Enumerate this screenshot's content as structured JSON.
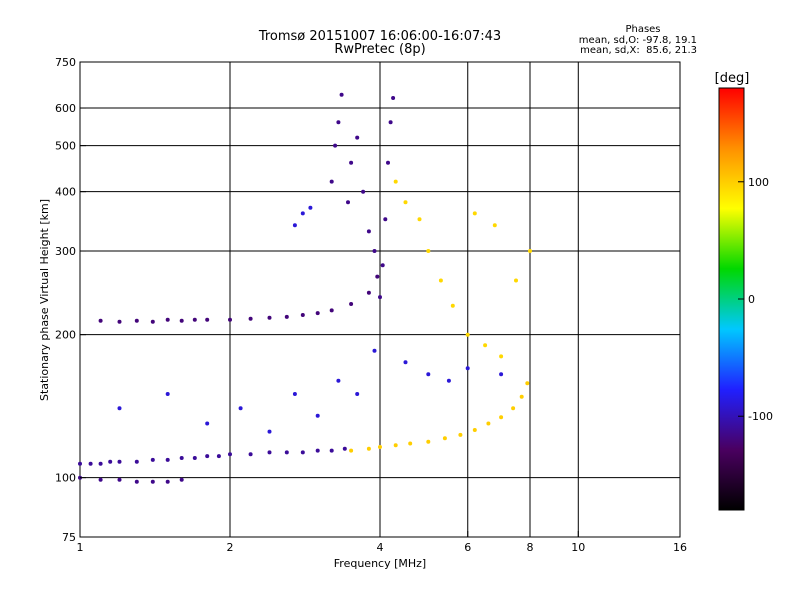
{
  "chart_data": {
    "type": "scatter",
    "title": "Tromsø 20151007 16:06:00-16:07:43",
    "subtitle": "RwPretec (8p)",
    "xlabel": "Frequency [MHz]",
    "ylabel": "Stationary phase Virtual Height [km]",
    "x_scale": "log",
    "y_scale": "log",
    "xlim": [
      1,
      16
    ],
    "ylim": [
      75,
      750
    ],
    "xticks": [
      1,
      2,
      4,
      6,
      8,
      10,
      16
    ],
    "yticks": [
      75,
      100,
      200,
      300,
      400,
      500,
      600,
      750
    ],
    "x_gridlines": [
      2,
      4,
      6,
      8,
      10
    ],
    "y_gridlines": [
      100,
      200,
      300,
      400,
      500,
      600
    ],
    "grid": true,
    "phases": {
      "heading": "Phases",
      "line_o": "mean, sd,O: -97.8, 19.1",
      "line_x": "mean, sd,X:  85.6, 21.3"
    },
    "colorbar": {
      "label": "[deg]",
      "min": -180,
      "max": 180,
      "ticks": [
        100,
        0,
        -100
      ],
      "colormap": [
        "#000000",
        "#4a0060",
        "#2020ff",
        "#00c8ff",
        "#00d800",
        "#ffff00",
        "#ff9000",
        "#ff0000"
      ]
    },
    "series": [
      {
        "trace": "lower_E_trace",
        "phase_deg": -110,
        "points": [
          [
            1.0,
            107
          ],
          [
            1.05,
            107
          ],
          [
            1.1,
            107
          ],
          [
            1.15,
            108
          ],
          [
            1.2,
            108
          ],
          [
            1.3,
            108
          ],
          [
            1.4,
            109
          ],
          [
            1.5,
            109
          ],
          [
            1.6,
            110
          ],
          [
            1.7,
            110
          ],
          [
            1.8,
            111
          ],
          [
            1.9,
            111
          ],
          [
            2.0,
            112
          ],
          [
            2.2,
            112
          ],
          [
            2.4,
            113
          ],
          [
            2.6,
            113
          ],
          [
            2.8,
            113
          ],
          [
            3.0,
            114
          ],
          [
            3.2,
            114
          ],
          [
            3.4,
            115
          ]
        ]
      },
      {
        "trace": "x_mode_E_trace",
        "phase_deg": 100,
        "points": [
          [
            3.5,
            114
          ],
          [
            3.8,
            115
          ],
          [
            4.0,
            116
          ],
          [
            4.3,
            117
          ],
          [
            4.6,
            118
          ],
          [
            5.0,
            119
          ],
          [
            5.4,
            121
          ],
          [
            5.8,
            123
          ],
          [
            6.2,
            126
          ],
          [
            6.6,
            130
          ],
          [
            7.0,
            134
          ],
          [
            7.4,
            140
          ],
          [
            7.7,
            148
          ],
          [
            7.9,
            158
          ]
        ]
      },
      {
        "trace": "low_echo_trace",
        "phase_deg": -115,
        "points": [
          [
            1.0,
            100
          ],
          [
            1.1,
            99
          ],
          [
            1.2,
            99
          ],
          [
            1.3,
            98
          ],
          [
            1.4,
            98
          ],
          [
            1.5,
            98
          ],
          [
            1.6,
            99
          ]
        ]
      },
      {
        "trace": "F_layer_trace",
        "phase_deg": -120,
        "points": [
          [
            1.1,
            214
          ],
          [
            1.2,
            213
          ],
          [
            1.3,
            214
          ],
          [
            1.4,
            213
          ],
          [
            1.5,
            215
          ],
          [
            1.6,
            214
          ],
          [
            1.7,
            215
          ],
          [
            1.8,
            215
          ],
          [
            2.0,
            215
          ],
          [
            2.2,
            216
          ],
          [
            2.4,
            217
          ],
          [
            2.6,
            218
          ],
          [
            2.8,
            220
          ],
          [
            3.0,
            222
          ],
          [
            3.2,
            225
          ],
          [
            3.5,
            232
          ],
          [
            3.8,
            245
          ],
          [
            3.95,
            265
          ]
        ]
      },
      {
        "trace": "F_cusp_column",
        "phase_deg": -115,
        "points": [
          [
            3.2,
            420
          ],
          [
            3.25,
            500
          ],
          [
            3.3,
            560
          ],
          [
            3.35,
            640
          ],
          [
            3.45,
            380
          ],
          [
            3.5,
            460
          ],
          [
            3.6,
            520
          ],
          [
            3.7,
            400
          ],
          [
            3.8,
            330
          ],
          [
            3.9,
            300
          ],
          [
            4.0,
            240
          ],
          [
            4.05,
            280
          ],
          [
            4.1,
            350
          ],
          [
            4.15,
            460
          ],
          [
            4.2,
            560
          ],
          [
            4.25,
            630
          ]
        ]
      },
      {
        "trace": "x_mode_F_region",
        "phase_deg": 95,
        "points": [
          [
            4.3,
            420
          ],
          [
            4.5,
            380
          ],
          [
            4.8,
            350
          ],
          [
            5.0,
            300
          ],
          [
            5.3,
            260
          ],
          [
            5.6,
            230
          ],
          [
            6.0,
            200
          ],
          [
            6.5,
            190
          ],
          [
            7.0,
            180
          ],
          [
            7.5,
            260
          ],
          [
            8.0,
            300
          ],
          [
            6.8,
            340
          ],
          [
            6.2,
            360
          ]
        ]
      },
      {
        "trace": "scattered_echoes",
        "phase_deg": -90,
        "points": [
          [
            1.2,
            140
          ],
          [
            1.5,
            150
          ],
          [
            1.8,
            130
          ],
          [
            2.1,
            140
          ],
          [
            2.4,
            125
          ],
          [
            2.7,
            150
          ],
          [
            3.0,
            135
          ],
          [
            3.3,
            160
          ],
          [
            3.6,
            150
          ],
          [
            3.9,
            185
          ],
          [
            4.5,
            175
          ],
          [
            5.0,
            165
          ],
          [
            5.5,
            160
          ],
          [
            6.0,
            170
          ],
          [
            7.0,
            165
          ],
          [
            2.7,
            340
          ],
          [
            2.8,
            360
          ],
          [
            2.9,
            370
          ]
        ]
      }
    ]
  }
}
